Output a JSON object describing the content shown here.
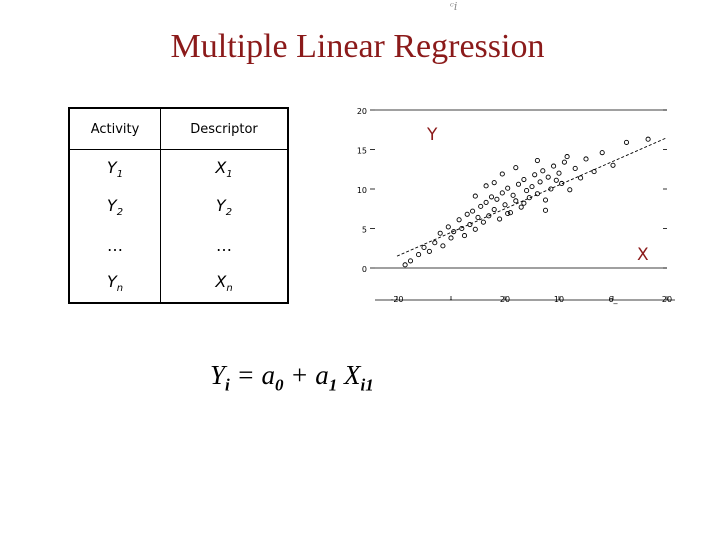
{
  "slide": {
    "top_mark": "ᶜi",
    "title": "Multiple Linear Regression",
    "equation": {
      "lhs": "Y",
      "lhs_sub": "i",
      "eq": " = a",
      "a0_sub": "0",
      "plus": " + a",
      "a1_sub": "1",
      "x": " X",
      "x_sub": "i1"
    }
  },
  "table": {
    "headers": [
      "Activity",
      "Descriptor"
    ],
    "rows": [
      {
        "activity": "Y",
        "activity_sub": "1",
        "descriptor": "X",
        "descriptor_sub": "1"
      },
      {
        "activity": "Y",
        "activity_sub": "2",
        "descriptor": "Y",
        "descriptor_sub": "2"
      },
      {
        "activity": "…",
        "activity_sub": "",
        "descriptor": "…",
        "descriptor_sub": ""
      },
      {
        "activity": "Y",
        "activity_sub": "n",
        "descriptor": "X",
        "descriptor_sub": "n"
      }
    ]
  },
  "colors": {
    "title": "#8b1a1a",
    "axis_letters": "#8b1a1a",
    "points": "#000000",
    "axes": "#000000"
  },
  "chart_data": {
    "type": "scatter",
    "title": "",
    "ylabel": "Y",
    "xlabel": "X",
    "y_ticks": [
      "20",
      "15",
      "10",
      "5",
      "0"
    ],
    "x_ticks": [
      "-20",
      "-",
      "20",
      "10",
      "6_",
      "20"
    ],
    "ylim": [
      0,
      20
    ],
    "xlim": [
      0,
      10
    ],
    "grid": false,
    "trend_line": {
      "x": [
        0,
        10
      ],
      "y": [
        1.5,
        16.5
      ]
    },
    "x": [
      0.3,
      0.5,
      0.8,
      1.0,
      1.2,
      1.4,
      1.6,
      1.7,
      1.9,
      2.0,
      2.1,
      2.3,
      2.4,
      2.5,
      2.6,
      2.7,
      2.8,
      2.9,
      3.0,
      3.1,
      3.2,
      3.3,
      3.4,
      3.5,
      3.6,
      3.7,
      3.8,
      3.9,
      4.0,
      4.1,
      4.2,
      4.3,
      4.4,
      4.5,
      4.6,
      4.7,
      4.8,
      4.9,
      5.0,
      5.1,
      5.2,
      5.3,
      5.4,
      5.5,
      5.6,
      5.7,
      5.8,
      5.9,
      6.0,
      6.1,
      6.2,
      6.4,
      6.6,
      6.8,
      7.0,
      7.3,
      7.6,
      8.0,
      8.5,
      9.3,
      3.6,
      4.4,
      5.2,
      2.9,
      3.9,
      4.7,
      5.5,
      3.3,
      4.1,
      6.3
    ],
    "y": [
      0.4,
      0.9,
      1.7,
      2.6,
      2.1,
      3.2,
      4.4,
      2.8,
      5.2,
      3.8,
      4.6,
      6.1,
      5.0,
      4.1,
      6.8,
      5.5,
      7.2,
      4.9,
      6.4,
      7.8,
      5.8,
      8.3,
      6.6,
      9.0,
      7.4,
      8.7,
      6.2,
      9.5,
      8.0,
      10.1,
      7.0,
      9.2,
      8.5,
      10.6,
      7.7,
      11.2,
      9.8,
      8.9,
      10.3,
      11.8,
      9.4,
      10.9,
      12.3,
      8.6,
      11.5,
      10.0,
      12.9,
      11.1,
      12.0,
      10.7,
      13.4,
      9.9,
      12.6,
      11.4,
      13.8,
      12.2,
      14.6,
      13.0,
      15.9,
      16.3,
      10.8,
      12.7,
      13.6,
      9.1,
      11.9,
      8.2,
      7.3,
      10.4,
      6.9,
      14.1
    ]
  }
}
